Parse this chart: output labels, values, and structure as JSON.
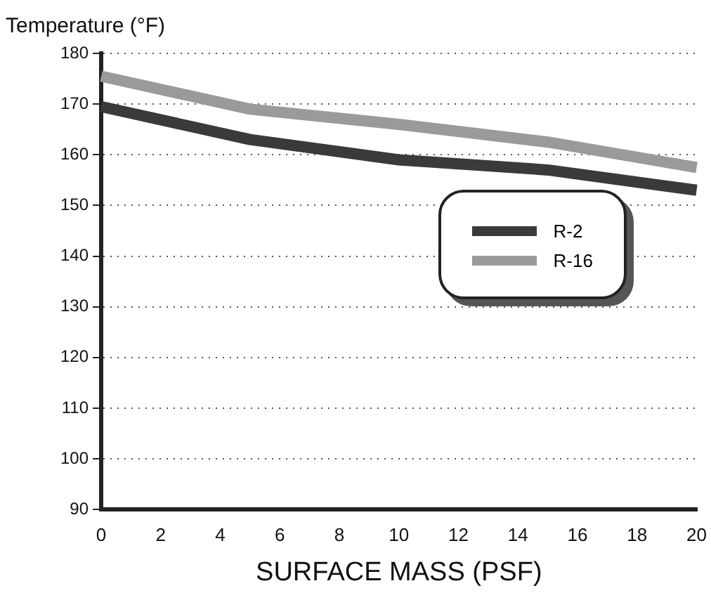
{
  "chart_data": {
    "type": "line",
    "ylabel": "Temperature (°F)",
    "xlabel": "SURFACE MASS (PSF)",
    "x": [
      0,
      5,
      10,
      15,
      20
    ],
    "series": [
      {
        "name": "R-2",
        "color": "#3a3a3a",
        "values": [
          169.5,
          163,
          159,
          157,
          153
        ]
      },
      {
        "name": "R-16",
        "color": "#9a9a9a",
        "values": [
          175.5,
          169,
          166,
          162.5,
          157.5
        ]
      }
    ],
    "xlim": [
      0,
      20
    ],
    "xticks": [
      0,
      2,
      4,
      6,
      8,
      10,
      12,
      14,
      16,
      18,
      20
    ],
    "ylim": [
      90,
      180
    ],
    "yticks": [
      90,
      100,
      110,
      120,
      130,
      140,
      150,
      160,
      170,
      180
    ],
    "grid": "y",
    "legend": "right",
    "marker": "none",
    "line_style": "solid"
  }
}
